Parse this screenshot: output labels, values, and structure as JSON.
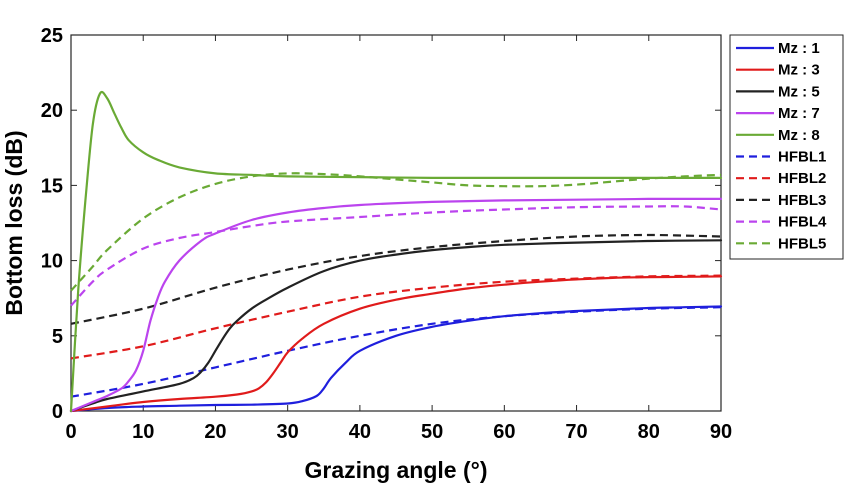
{
  "chart_data": {
    "type": "line",
    "xlabel": "Grazing angle (°)",
    "ylabel": "Bottom loss (dB)",
    "xlim": [
      0,
      90
    ],
    "ylim": [
      0,
      25
    ],
    "xticks": [
      0,
      10,
      20,
      30,
      40,
      50,
      60,
      70,
      80,
      90
    ],
    "yticks": [
      0,
      5,
      10,
      15,
      20,
      25
    ],
    "grid": false,
    "legend_position": "outside-right",
    "series": [
      {
        "name": "Mz : 1",
        "color": "#1f1fdd",
        "dash": "solid",
        "x": [
          0,
          5,
          10,
          15,
          20,
          25,
          30,
          32,
          34,
          35,
          36,
          38,
          40,
          45,
          50,
          55,
          60,
          65,
          70,
          75,
          80,
          85,
          90
        ],
        "y": [
          0,
          0.2,
          0.3,
          0.35,
          0.4,
          0.42,
          0.5,
          0.65,
          1.0,
          1.5,
          2.2,
          3.2,
          4.0,
          5.0,
          5.6,
          6.0,
          6.3,
          6.5,
          6.65,
          6.75,
          6.85,
          6.9,
          6.95
        ]
      },
      {
        "name": "Mz : 3",
        "color": "#e01b1b",
        "dash": "solid",
        "x": [
          0,
          5,
          10,
          15,
          20,
          23,
          25,
          26,
          27,
          28,
          29,
          30,
          32,
          35,
          40,
          45,
          50,
          55,
          60,
          65,
          70,
          75,
          80,
          85,
          90
        ],
        "y": [
          0,
          0.3,
          0.6,
          0.8,
          0.95,
          1.1,
          1.3,
          1.5,
          1.9,
          2.5,
          3.2,
          3.9,
          4.8,
          5.8,
          6.8,
          7.4,
          7.8,
          8.15,
          8.4,
          8.6,
          8.75,
          8.85,
          8.9,
          8.92,
          8.95
        ]
      },
      {
        "name": "Mz : 5",
        "color": "#222222",
        "dash": "solid",
        "x": [
          0,
          3,
          5,
          10,
          15,
          17,
          18,
          19,
          20,
          21,
          22,
          23,
          25,
          27,
          30,
          35,
          40,
          45,
          50,
          55,
          60,
          70,
          80,
          90
        ],
        "y": [
          0,
          0.5,
          0.8,
          1.3,
          1.8,
          2.2,
          2.6,
          3.2,
          4.0,
          4.8,
          5.5,
          6.0,
          6.8,
          7.4,
          8.2,
          9.3,
          10.0,
          10.4,
          10.7,
          10.9,
          11.05,
          11.2,
          11.3,
          11.35
        ]
      },
      {
        "name": "Mz : 7",
        "color": "#bb44ee",
        "dash": "solid",
        "x": [
          0,
          3,
          5,
          7,
          8,
          9,
          10,
          11,
          12,
          13,
          15,
          18,
          20,
          25,
          30,
          35,
          40,
          50,
          60,
          70,
          80,
          90
        ],
        "y": [
          0,
          0.6,
          1.0,
          1.5,
          2.0,
          2.7,
          4.0,
          6.0,
          7.5,
          8.6,
          10.0,
          11.3,
          11.8,
          12.7,
          13.2,
          13.5,
          13.7,
          13.9,
          14.0,
          14.05,
          14.1,
          14.1
        ]
      },
      {
        "name": "Mz : 8",
        "color": "#6aaa35",
        "dash": "solid",
        "x": [
          0,
          1,
          2,
          3,
          4,
          5,
          6,
          7,
          8,
          10,
          12,
          15,
          20,
          25,
          30,
          40,
          50,
          60,
          70,
          80,
          90
        ],
        "y": [
          0,
          8,
          14,
          19,
          21.1,
          20.8,
          19.8,
          18.8,
          18.0,
          17.2,
          16.7,
          16.2,
          15.8,
          15.7,
          15.6,
          15.55,
          15.5,
          15.5,
          15.5,
          15.5,
          15.5
        ]
      },
      {
        "name": "HFBL1",
        "color": "#1f1fdd",
        "dash": "dashed",
        "x": [
          0,
          10,
          20,
          30,
          40,
          50,
          60,
          70,
          80,
          90
        ],
        "y": [
          0.95,
          1.8,
          2.9,
          4.0,
          5.0,
          5.8,
          6.3,
          6.6,
          6.8,
          6.9
        ]
      },
      {
        "name": "HFBL2",
        "color": "#e01b1b",
        "dash": "dashed",
        "x": [
          0,
          10,
          20,
          30,
          40,
          50,
          60,
          70,
          80,
          90
        ],
        "y": [
          3.5,
          4.3,
          5.5,
          6.6,
          7.6,
          8.2,
          8.6,
          8.8,
          8.95,
          9.0
        ]
      },
      {
        "name": "HFBL3",
        "color": "#222222",
        "dash": "dashed",
        "x": [
          0,
          10,
          20,
          30,
          40,
          50,
          60,
          70,
          80,
          90
        ],
        "y": [
          5.8,
          6.8,
          8.2,
          9.4,
          10.3,
          10.9,
          11.3,
          11.6,
          11.7,
          11.6
        ]
      },
      {
        "name": "HFBL4",
        "color": "#bb44ee",
        "dash": "dashed",
        "x": [
          0,
          3,
          5,
          10,
          15,
          20,
          25,
          30,
          40,
          50,
          60,
          70,
          80,
          85,
          90
        ],
        "y": [
          7.0,
          8.6,
          9.4,
          10.8,
          11.5,
          11.9,
          12.3,
          12.6,
          12.9,
          13.2,
          13.4,
          13.55,
          13.6,
          13.6,
          13.4
        ]
      },
      {
        "name": "HFBL5",
        "color": "#6aaa35",
        "dash": "dashed",
        "x": [
          0,
          3,
          5,
          10,
          15,
          20,
          25,
          30,
          35,
          40,
          45,
          50,
          55,
          60,
          65,
          70,
          75,
          80,
          85,
          90
        ],
        "y": [
          8.0,
          9.6,
          10.7,
          12.8,
          14.2,
          15.1,
          15.6,
          15.8,
          15.75,
          15.6,
          15.4,
          15.2,
          15.0,
          14.95,
          14.95,
          15.05,
          15.25,
          15.45,
          15.6,
          15.7
        ]
      }
    ]
  }
}
